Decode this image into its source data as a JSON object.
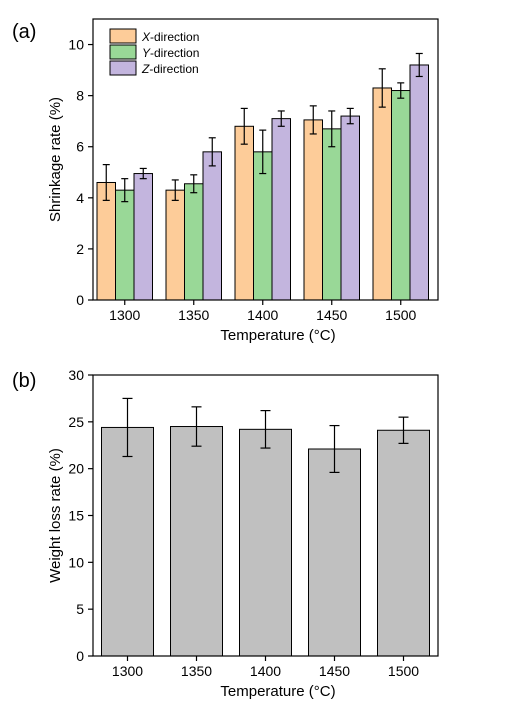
{
  "chart_data": [
    {
      "type": "bar",
      "panel_label": "(a)",
      "categories": [
        "1300",
        "1350",
        "1400",
        "1450",
        "1500"
      ],
      "xlabel": "Temperature (°C)",
      "ylabel": "Shrinkage rate (%)",
      "ylim": [
        0,
        11
      ],
      "yticks": [
        "0",
        "2",
        "4",
        "6",
        "8",
        "10"
      ],
      "legend_position": "top-left",
      "series": [
        {
          "name_var": "X",
          "name_rest": "-direction",
          "color": "#fdcc99",
          "values": [
            4.6,
            4.3,
            6.8,
            7.05,
            8.3
          ],
          "errors": [
            0.7,
            0.4,
            0.7,
            0.55,
            0.75
          ]
        },
        {
          "name_var": "Y",
          "name_rest": "-direction",
          "color": "#99d897",
          "values": [
            4.3,
            4.55,
            5.8,
            6.7,
            8.2
          ],
          "errors": [
            0.45,
            0.35,
            0.85,
            0.7,
            0.3
          ]
        },
        {
          "name_var": "Z",
          "name_rest": "-direction",
          "color": "#c3b5de",
          "values": [
            4.95,
            5.8,
            7.1,
            7.2,
            9.2
          ],
          "errors": [
            0.2,
            0.55,
            0.3,
            0.3,
            0.45
          ]
        }
      ]
    },
    {
      "type": "bar",
      "panel_label": "(b)",
      "categories": [
        "1300",
        "1350",
        "1400",
        "1450",
        "1500"
      ],
      "xlabel": "Temperature (°C)",
      "ylabel": "Weight loss rate (%)",
      "ylim": [
        0,
        30
      ],
      "yticks": [
        "0",
        "5",
        "10",
        "15",
        "20",
        "25",
        "30"
      ],
      "series": [
        {
          "color": "#c0c0c0",
          "values": [
            24.4,
            24.5,
            24.2,
            22.1,
            24.1
          ],
          "errors": [
            3.1,
            2.1,
            2.0,
            2.5,
            1.4
          ]
        }
      ]
    }
  ]
}
